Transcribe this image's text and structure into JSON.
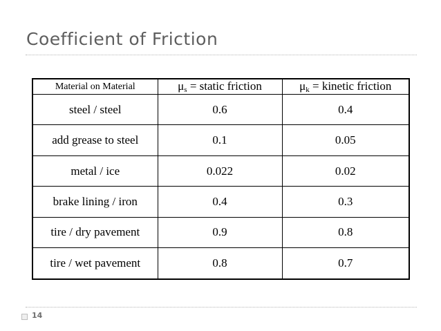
{
  "slide": {
    "title": "Coefficient of Friction",
    "page_number": "14"
  },
  "table": {
    "headers": {
      "material": "Material on Material",
      "static_symbol": "μ",
      "static_sub": "s",
      "static_text": " = static friction",
      "kinetic_symbol": "μ",
      "kinetic_sub": "k",
      "kinetic_text": " = kinetic friction"
    },
    "rows": [
      {
        "material": "steel / steel",
        "static": "0.6",
        "kinetic": "0.4"
      },
      {
        "material": "add grease to steel",
        "static": "0.1",
        "kinetic": "0.05"
      },
      {
        "material": "metal / ice",
        "static": "0.022",
        "kinetic": "0.02"
      },
      {
        "material": "brake lining / iron",
        "static": "0.4",
        "kinetic": "0.3"
      },
      {
        "material": "tire / dry pavement",
        "static": "0.9",
        "kinetic": "0.8"
      },
      {
        "material": "tire / wet pavement",
        "static": "0.8",
        "kinetic": "0.7"
      }
    ]
  }
}
